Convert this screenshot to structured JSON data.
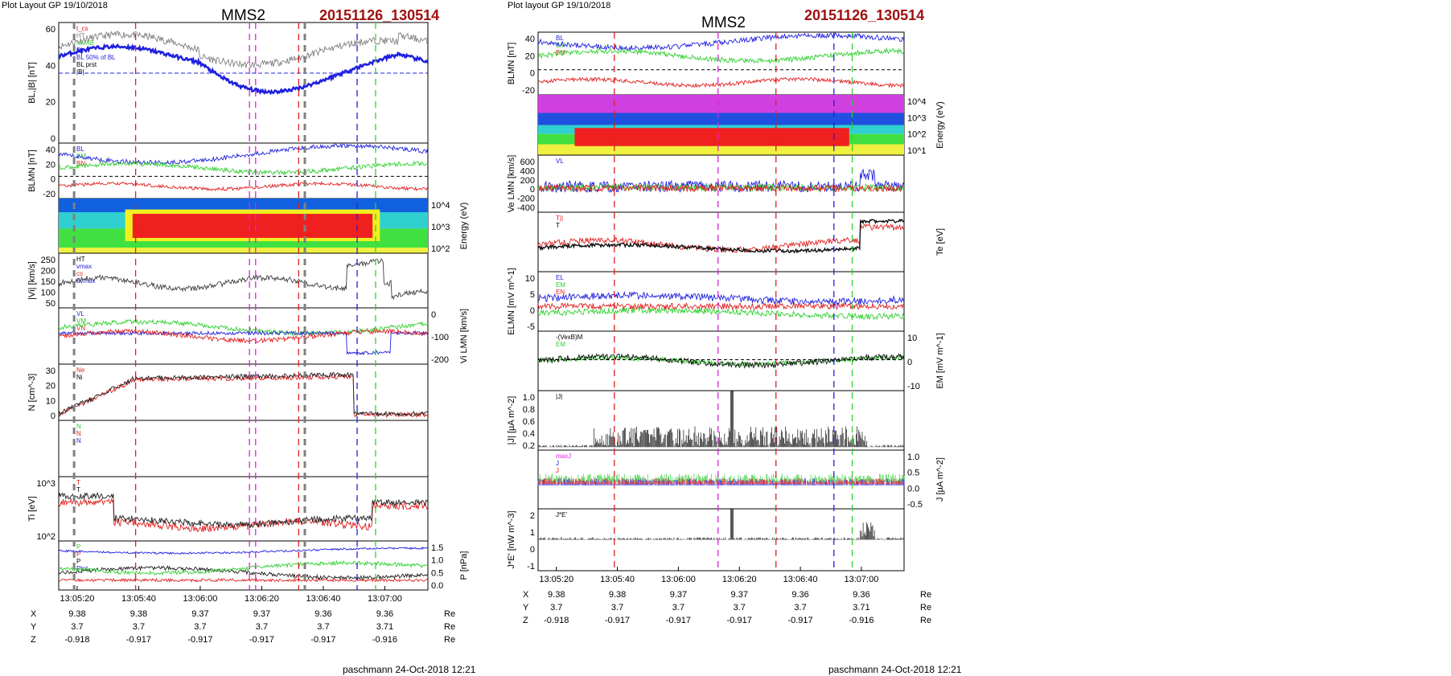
{
  "colors": {
    "blue": "#2020e0",
    "green": "#30d030",
    "red": "#e02020",
    "black": "#000000",
    "gray": "#808080",
    "magenta": "#e020e0",
    "title_red": "#a01010"
  },
  "left": {
    "layout_label": "Plot Layout GP 19/10/2018",
    "spacecraft": "MMS2",
    "event": "20151126_130514",
    "footer": "paschmann 24-Oct-2018 12:21",
    "time_ticks": [
      "13:05:20",
      "13:05:40",
      "13:06:00",
      "13:06:20",
      "13:06:40",
      "13:07:00"
    ],
    "ephem": [
      {
        "name": "X",
        "values": [
          "9.38",
          "9.38",
          "9.37",
          "9.37",
          "9.36",
          "9.36"
        ],
        "unit": "Re"
      },
      {
        "name": "Y",
        "values": [
          "3.7",
          "3.7",
          "3.7",
          "3.7",
          "3.7",
          "3.71"
        ],
        "unit": "Re"
      },
      {
        "name": "Z",
        "values": [
          "-0.918",
          "-0.917",
          "-0.917",
          "-0.917",
          "-0.917",
          "-0.916"
        ],
        "unit": "Re"
      }
    ],
    "panels": [
      {
        "ylabel": "BL,|B| [nT]",
        "ticks": [
          "60",
          "40",
          "20",
          "0"
        ],
        "legend": [
          "t_cs",
          "HT",
          "MVAB",
          "BL",
          "BL 50% of BL",
          "BL prst",
          "|B|"
        ]
      },
      {
        "ylabel": "BLMN [nT]",
        "ticks": [
          "40",
          "20",
          "0",
          "-20"
        ],
        "legend": [
          "BL",
          "BM",
          "BN"
        ]
      },
      {
        "ylabel": "Energy (eV)",
        "ticks": [
          "10^4",
          "10^3",
          "10^2"
        ],
        "legend": []
      },
      {
        "ylabel": "|Vi| [km/s]",
        "ticks": [
          "250",
          "200",
          "150",
          "100",
          "50"
        ],
        "legend": [
          "HT",
          "vmax",
          "cs",
          "dvmax"
        ]
      },
      {
        "ylabel": "Vi LMN [km/s]",
        "ticks": [
          "0",
          "-100",
          "-200"
        ],
        "legend": [
          "VL",
          "VM",
          "VN"
        ]
      },
      {
        "ylabel": "N [cm^-3]",
        "ticks": [
          "30",
          "20",
          "10",
          "0"
        ],
        "legend": [
          "Ne",
          "Ni"
        ]
      },
      {
        "ylabel": "",
        "ticks": [],
        "legend": [
          "N",
          "N",
          "N"
        ]
      },
      {
        "ylabel": "Ti [eV]",
        "ticks": [
          "10^3",
          "10^2"
        ],
        "legend": [
          "T",
          "T"
        ]
      },
      {
        "ylabel": "P [nPa]",
        "ticks": [
          "1.5",
          "1.0",
          "0.5",
          "0.0"
        ],
        "legend": [
          "P",
          "P",
          "P",
          "Ptot"
        ]
      }
    ]
  },
  "right": {
    "layout_label": "Plot layout GP 19/10/2018",
    "spacecraft": "MMS2",
    "event": "20151126_130514",
    "footer": "paschmann 24-Oct-2018 12:21",
    "time_ticks": [
      "13:05:20",
      "13:05:40",
      "13:06:00",
      "13:06:20",
      "13:06:40",
      "13:07:00"
    ],
    "ephem": [
      {
        "name": "X",
        "values": [
          "9.38",
          "9.38",
          "9.37",
          "9.37",
          "9.36",
          "9.36"
        ],
        "unit": "Re"
      },
      {
        "name": "Y",
        "values": [
          "3.7",
          "3.7",
          "3.7",
          "3.7",
          "3.7",
          "3.71"
        ],
        "unit": "Re"
      },
      {
        "name": "Z",
        "values": [
          "-0.918",
          "-0.917",
          "-0.917",
          "-0.917",
          "-0.917",
          "-0.916"
        ],
        "unit": "Re"
      }
    ],
    "panels": [
      {
        "ylabel": "BLMN [nT]",
        "ticks": [
          "40",
          "20",
          "0",
          "-20"
        ],
        "legend": [
          "BL",
          "BM",
          "BN"
        ]
      },
      {
        "ylabel": "Energy (eV)",
        "ticks": [
          "10^4",
          "10^3",
          "10^2",
          "10^1"
        ],
        "legend": []
      },
      {
        "ylabel": "Ve LMN [km/s]",
        "ticks": [
          "600",
          "400",
          "200",
          "0",
          "-200",
          "-400"
        ],
        "legend": [
          "VL"
        ]
      },
      {
        "ylabel": "Te [eV]",
        "ticks": [],
        "legend": [
          "T||",
          "T"
        ]
      },
      {
        "ylabel": "ELMN [mV m^-1]",
        "ticks": [
          "10",
          "5",
          "0",
          "-5"
        ],
        "legend": [
          "EL",
          "EM",
          "EN"
        ]
      },
      {
        "ylabel": "EM [mV m^-1]",
        "ticks": [
          "10",
          "0",
          "-10"
        ],
        "legend": [
          "-(VexB)M",
          "EM"
        ]
      },
      {
        "ylabel": "|J| [µA m^-2]",
        "ticks": [
          "1.0",
          "0.8",
          "0.6",
          "0.4",
          "0.2"
        ],
        "legend": [
          "|J|"
        ]
      },
      {
        "ylabel": "J [µA m^-2]",
        "ticks": [
          "1.0",
          "0.5",
          "0.0",
          "-0.5"
        ],
        "legend": [
          "maxJ",
          "J",
          "J"
        ]
      },
      {
        "ylabel": "J*E' [nW m^-3]",
        "ticks": [
          "2",
          "1",
          "0",
          "-1"
        ],
        "legend": [
          "J*E'"
        ]
      }
    ]
  },
  "chart_data": [
    {
      "type": "line",
      "x_range": [
        "13:05:14",
        "13:07:14"
      ],
      "events": [
        {
          "time": "13:05:19",
          "color": "gray"
        },
        {
          "time": "13:06:34",
          "color": "gray"
        },
        {
          "time": "13:05:39",
          "color": "red"
        },
        {
          "time": "13:06:16",
          "color": "magenta"
        },
        {
          "time": "13:06:18",
          "color": "magenta"
        },
        {
          "time": "13:06:32",
          "color": "red"
        },
        {
          "time": "13:06:51",
          "color": "blue"
        },
        {
          "time": "13:06:57",
          "color": "green"
        }
      ]
    },
    {
      "type": "line",
      "x_range": [
        "13:05:14",
        "13:07:14"
      ],
      "events": [
        {
          "time": "13:05:39",
          "color": "red"
        },
        {
          "time": "13:06:13",
          "color": "magenta"
        },
        {
          "time": "13:06:32",
          "color": "red"
        },
        {
          "time": "13:06:51",
          "color": "blue"
        },
        {
          "time": "13:06:57",
          "color": "green"
        }
      ]
    }
  ]
}
